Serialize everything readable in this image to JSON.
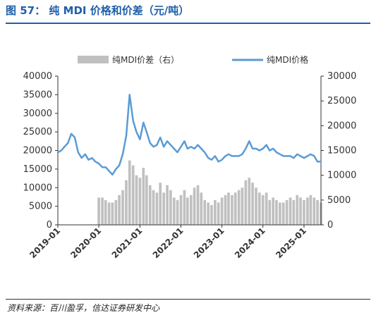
{
  "figure": {
    "title": "图 57： 纯 MDI 价格和价差（元/吨）",
    "source": "资料来源：百川盈孚，信达证券研发中心"
  },
  "chart_data": {
    "type": "bar+line",
    "legend": {
      "position": "top",
      "entries": [
        "纯MDI价差（右）",
        "纯MDI价格"
      ]
    },
    "colors": {
      "price": "#5b9bd5",
      "spread": "#c0c0c0"
    },
    "left_axis": {
      "ylim": [
        0,
        40000
      ],
      "ticks": [
        "0",
        "5000",
        "10000",
        "15000",
        "20000",
        "25000",
        "30000",
        "35000",
        "40000"
      ]
    },
    "right_axis": {
      "ylim": [
        0,
        30000
      ],
      "ticks": [
        "0",
        "5000",
        "10000",
        "15000",
        "20000",
        "25000",
        "30000"
      ]
    },
    "x_axis": {
      "range": [
        "2019-01",
        "2025-06"
      ],
      "ticks": [
        "2019-01",
        "2020-01",
        "2021-01",
        "2022-01",
        "2023-01",
        "2024-01",
        "2025-01"
      ]
    },
    "series": [
      {
        "name": "纯MDI价格",
        "axis": "left",
        "kind": "line",
        "points": [
          [
            "2019-01-01",
            19500
          ],
          [
            "2019-02-01",
            20000
          ],
          [
            "2019-03-01",
            21000
          ],
          [
            "2019-04-01",
            22000
          ],
          [
            "2019-05-01",
            24500
          ],
          [
            "2019-06-01",
            23500
          ],
          [
            "2019-07-01",
            19500
          ],
          [
            "2019-08-01",
            18000
          ],
          [
            "2019-09-01",
            19000
          ],
          [
            "2019-10-01",
            17500
          ],
          [
            "2019-11-01",
            18000
          ],
          [
            "2019-12-01",
            17000
          ],
          [
            "2020-01-01",
            16500
          ],
          [
            "2020-02-01",
            15500
          ],
          [
            "2020-03-01",
            15500
          ],
          [
            "2020-04-01",
            14500
          ],
          [
            "2020-05-01",
            13500
          ],
          [
            "2020-06-01",
            15000
          ],
          [
            "2020-07-01",
            16000
          ],
          [
            "2020-08-01",
            19000
          ],
          [
            "2020-09-01",
            24000
          ],
          [
            "2020-10-01",
            35000
          ],
          [
            "2020-11-01",
            28000
          ],
          [
            "2020-12-01",
            25000
          ],
          [
            "2021-01-01",
            23000
          ],
          [
            "2021-02-01",
            27500
          ],
          [
            "2021-03-01",
            25000
          ],
          [
            "2021-04-01",
            22000
          ],
          [
            "2021-05-01",
            21000
          ],
          [
            "2021-06-01",
            21500
          ],
          [
            "2021-07-01",
            23500
          ],
          [
            "2021-08-01",
            21000
          ],
          [
            "2021-09-01",
            22500
          ],
          [
            "2021-10-01",
            21500
          ],
          [
            "2021-11-01",
            20500
          ],
          [
            "2021-12-01",
            19500
          ],
          [
            "2022-01-01",
            21000
          ],
          [
            "2022-02-01",
            22500
          ],
          [
            "2022-03-01",
            20500
          ],
          [
            "2022-04-01",
            21000
          ],
          [
            "2022-05-01",
            20500
          ],
          [
            "2022-06-01",
            21500
          ],
          [
            "2022-07-01",
            20500
          ],
          [
            "2022-08-01",
            19500
          ],
          [
            "2022-09-01",
            18000
          ],
          [
            "2022-10-01",
            17500
          ],
          [
            "2022-11-01",
            18500
          ],
          [
            "2022-12-01",
            17000
          ],
          [
            "2023-01-01",
            17500
          ],
          [
            "2023-02-01",
            18500
          ],
          [
            "2023-03-01",
            19000
          ],
          [
            "2023-04-01",
            18500
          ],
          [
            "2023-05-01",
            18500
          ],
          [
            "2023-06-01",
            18500
          ],
          [
            "2023-07-01",
            19000
          ],
          [
            "2023-08-01",
            20500
          ],
          [
            "2023-09-01",
            22500
          ],
          [
            "2023-10-01",
            20500
          ],
          [
            "2023-11-01",
            20500
          ],
          [
            "2023-12-01",
            20000
          ],
          [
            "2024-01-01",
            20500
          ],
          [
            "2024-02-01",
            21500
          ],
          [
            "2024-03-01",
            20000
          ],
          [
            "2024-04-01",
            20500
          ],
          [
            "2024-05-01",
            19500
          ],
          [
            "2024-06-01",
            19000
          ],
          [
            "2024-07-01",
            18500
          ],
          [
            "2024-08-01",
            18500
          ],
          [
            "2024-09-01",
            18500
          ],
          [
            "2024-10-01",
            18000
          ],
          [
            "2024-11-01",
            19000
          ],
          [
            "2024-12-01",
            18500
          ],
          [
            "2025-01-01",
            18000
          ],
          [
            "2025-02-01",
            18500
          ],
          [
            "2025-03-01",
            19000
          ],
          [
            "2025-04-01",
            18500
          ],
          [
            "2025-05-01",
            17000
          ],
          [
            "2025-06-01",
            17000
          ]
        ]
      },
      {
        "name": "纯MDI价差（右）",
        "axis": "right",
        "kind": "bar",
        "points": [
          [
            "2020-01-01",
            5500
          ],
          [
            "2020-02-01",
            5500
          ],
          [
            "2020-03-01",
            5000
          ],
          [
            "2020-04-01",
            4500
          ],
          [
            "2020-05-01",
            4500
          ],
          [
            "2020-06-01",
            5000
          ],
          [
            "2020-07-01",
            6000
          ],
          [
            "2020-08-01",
            7000
          ],
          [
            "2020-09-01",
            9000
          ],
          [
            "2020-10-01",
            13000
          ],
          [
            "2020-11-01",
            12000
          ],
          [
            "2020-12-01",
            10000
          ],
          [
            "2021-01-01",
            9500
          ],
          [
            "2021-02-01",
            11500
          ],
          [
            "2021-03-01",
            10000
          ],
          [
            "2021-04-01",
            8000
          ],
          [
            "2021-05-01",
            7000
          ],
          [
            "2021-06-01",
            6500
          ],
          [
            "2021-07-01",
            8500
          ],
          [
            "2021-08-01",
            6500
          ],
          [
            "2021-09-01",
            8000
          ],
          [
            "2021-10-01",
            7000
          ],
          [
            "2021-11-01",
            5500
          ],
          [
            "2021-12-01",
            5000
          ],
          [
            "2022-01-01",
            6000
          ],
          [
            "2022-02-01",
            7000
          ],
          [
            "2022-03-01",
            5500
          ],
          [
            "2022-04-01",
            6000
          ],
          [
            "2022-05-01",
            7500
          ],
          [
            "2022-06-01",
            8000
          ],
          [
            "2022-07-01",
            6500
          ],
          [
            "2022-08-01",
            5000
          ],
          [
            "2022-09-01",
            4500
          ],
          [
            "2022-10-01",
            4000
          ],
          [
            "2022-11-01",
            5000
          ],
          [
            "2022-12-01",
            4500
          ],
          [
            "2023-01-01",
            5500
          ],
          [
            "2023-02-01",
            6000
          ],
          [
            "2023-03-01",
            6500
          ],
          [
            "2023-04-01",
            6000
          ],
          [
            "2023-05-01",
            6500
          ],
          [
            "2023-06-01",
            7000
          ],
          [
            "2023-07-01",
            7500
          ],
          [
            "2023-08-01",
            9000
          ],
          [
            "2023-09-01",
            9500
          ],
          [
            "2023-10-01",
            8500
          ],
          [
            "2023-11-01",
            7500
          ],
          [
            "2023-12-01",
            6500
          ],
          [
            "2024-01-01",
            6000
          ],
          [
            "2024-02-01",
            6500
          ],
          [
            "2024-03-01",
            5000
          ],
          [
            "2024-04-01",
            5500
          ],
          [
            "2024-05-01",
            5000
          ],
          [
            "2024-06-01",
            4500
          ],
          [
            "2024-07-01",
            4500
          ],
          [
            "2024-08-01",
            5000
          ],
          [
            "2024-09-01",
            5500
          ],
          [
            "2024-10-01",
            5000
          ],
          [
            "2024-11-01",
            6000
          ],
          [
            "2024-12-01",
            5500
          ],
          [
            "2025-01-01",
            5000
          ],
          [
            "2025-02-01",
            5500
          ],
          [
            "2025-03-01",
            6000
          ],
          [
            "2025-04-01",
            5500
          ],
          [
            "2025-05-01",
            5000
          ],
          [
            "2025-06-01",
            4500
          ]
        ]
      }
    ]
  }
}
